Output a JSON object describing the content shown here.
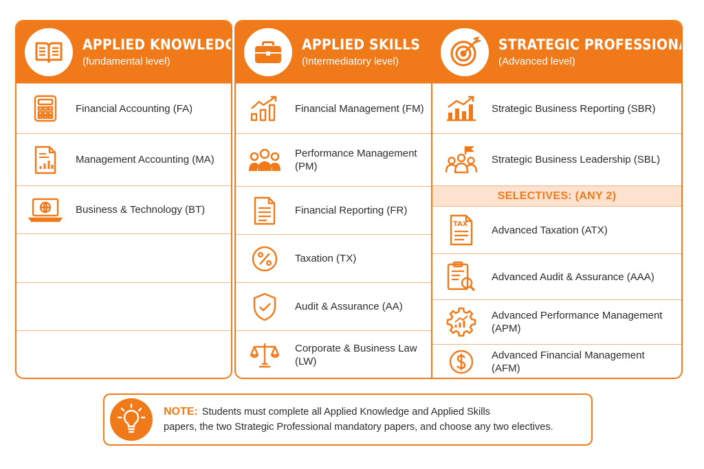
{
  "columns": [
    {
      "title": "APPLIED KNOWLEDGE",
      "subtitle": "(fundamental level)",
      "icon": "book-icon",
      "papers": [
        {
          "label": "Financial Accounting (FA)",
          "icon": "calculator-icon"
        },
        {
          "label": "Management Accounting (MA)",
          "icon": "report-chart-icon"
        },
        {
          "label": "Business & Technology (BT)",
          "icon": "laptop-globe-icon"
        }
      ]
    },
    {
      "title": "APPLIED SKILLS",
      "subtitle": "(Intermediatory level)",
      "icon": "briefcase-icon",
      "papers": [
        {
          "label": "Financial Management (FM)",
          "icon": "growth-chart-icon"
        },
        {
          "label": "Performance Management (PM)",
          "icon": "people-group-icon"
        },
        {
          "label": "Financial Reporting (FR)",
          "icon": "document-icon"
        },
        {
          "label": "Taxation (TX)",
          "icon": "percent-icon"
        },
        {
          "label": "Audit & Assurance (AA)",
          "icon": "shield-check-icon"
        },
        {
          "label": "Corporate & Business Law (LW)",
          "icon": "scales-icon"
        }
      ]
    },
    {
      "title": "STRATEGIC PROFESSIONAL",
      "subtitle": "(Advanced level)",
      "icon": "target-icon",
      "papers": [
        {
          "label": "Strategic Business Reporting (SBR)",
          "icon": "bar-growth-icon"
        },
        {
          "label": "Strategic Business Leadership (SBL)",
          "icon": "team-flag-icon"
        }
      ],
      "selectives_label": "SELECTIVES: (ANY 2)",
      "selectives": [
        {
          "label": "Advanced Taxation (ATX)",
          "icon": "tax-document-icon",
          "icon_text": "TAX"
        },
        {
          "label": "Advanced Audit & Assurance (AAA)",
          "icon": "clipboard-magnifier-icon"
        },
        {
          "label": "Advanced Performance Management (APM)",
          "icon": "gear-chart-icon"
        },
        {
          "label": "Advanced Financial Management (AFM)",
          "icon": "dollar-coin-icon"
        }
      ]
    }
  ],
  "note": {
    "heading": "NOTE:",
    "line1": "Students must complete all Applied Knowledge and Applied Skills",
    "line2": "papers, the two Strategic Professional mandatory papers, and choose any two electives.",
    "icon": "lightbulb-icon"
  },
  "colors": {
    "accent": "#f07a1a",
    "band": "#fde3cf",
    "divider": "#f4b384"
  }
}
